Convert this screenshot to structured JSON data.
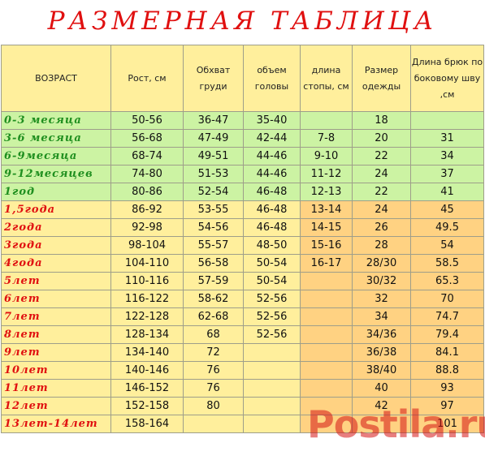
{
  "title": "РАЗМЕРНАЯ ТАБЛИЦА",
  "headers": [
    "ВОЗРАСТ",
    "Рост, см",
    "Обхват груди",
    "объем головы",
    "длина стопы, см",
    "Размер одежды",
    "Длина брюк по боковому шву ,см"
  ],
  "rows": [
    {
      "group": "infant",
      "cells": [
        "0-3 месяца",
        "50-56",
        "36-47",
        "35-40",
        "",
        "18",
        ""
      ]
    },
    {
      "group": "infant",
      "cells": [
        "3-6 месяца",
        "56-68",
        "47-49",
        "42-44",
        "7-8",
        "20",
        "31"
      ]
    },
    {
      "group": "infant",
      "cells": [
        "6-9месяца",
        "68-74",
        "49-51",
        "44-46",
        "9-10",
        "22",
        "34"
      ]
    },
    {
      "group": "infant",
      "cells": [
        "9-12месяцев",
        "74-80",
        "51-53",
        "44-46",
        "11-12",
        "24",
        "37"
      ]
    },
    {
      "group": "infant",
      "cells": [
        "1год",
        "80-86",
        "52-54",
        "46-48",
        "12-13",
        "22",
        "41"
      ]
    },
    {
      "group": "child",
      "cells": [
        "1,5года",
        "86-92",
        "53-55",
        "46-48",
        "13-14",
        "24",
        "45"
      ]
    },
    {
      "group": "child",
      "cells": [
        "2года",
        "92-98",
        "54-56",
        "46-48",
        "14-15",
        "26",
        "49.5"
      ]
    },
    {
      "group": "child",
      "cells": [
        "3года",
        "98-104",
        "55-57",
        "48-50",
        "15-16",
        "28",
        "54"
      ]
    },
    {
      "group": "child",
      "cells": [
        "4года",
        "104-110",
        "56-58",
        "50-54",
        "16-17",
        "28/30",
        "58.5"
      ]
    },
    {
      "group": "child",
      "cells": [
        "5лет",
        "110-116",
        "57-59",
        "50-54",
        "",
        "30/32",
        "65.3"
      ]
    },
    {
      "group": "child",
      "cells": [
        "6лет",
        "116-122",
        "58-62",
        "52-56",
        "",
        "32",
        "70"
      ]
    },
    {
      "group": "child",
      "cells": [
        "7лет",
        "122-128",
        "62-68",
        "52-56",
        "",
        "34",
        "74.7"
      ]
    },
    {
      "group": "child",
      "cells": [
        "8лет",
        "128-134",
        "68",
        "52-56",
        "",
        "34/36",
        "79.4"
      ]
    },
    {
      "group": "child",
      "cells": [
        "9лет",
        "134-140",
        "72",
        "",
        "",
        "36/38",
        "84.1"
      ]
    },
    {
      "group": "child",
      "cells": [
        "10лет",
        "140-146",
        "76",
        "",
        "",
        "38/40",
        "88.8"
      ]
    },
    {
      "group": "child",
      "cells": [
        "11лет",
        "146-152",
        "76",
        "",
        "",
        "40",
        "93"
      ]
    },
    {
      "group": "child",
      "cells": [
        "12лет",
        "152-158",
        "80",
        "",
        "",
        "42",
        "97"
      ]
    },
    {
      "group": "child",
      "cells": [
        "13лет-14лет",
        "158-164",
        "",
        "",
        "",
        "",
        "101"
      ]
    }
  ],
  "watermark": "Postila.ru",
  "colors": {
    "title": "#e01010",
    "infant_label": "#1f8f1f",
    "child_label": "#e01010",
    "infant_bg": "#ccf3a3",
    "child_bg_light": "#ffef9c",
    "child_bg_dark": "#ffd282"
  }
}
